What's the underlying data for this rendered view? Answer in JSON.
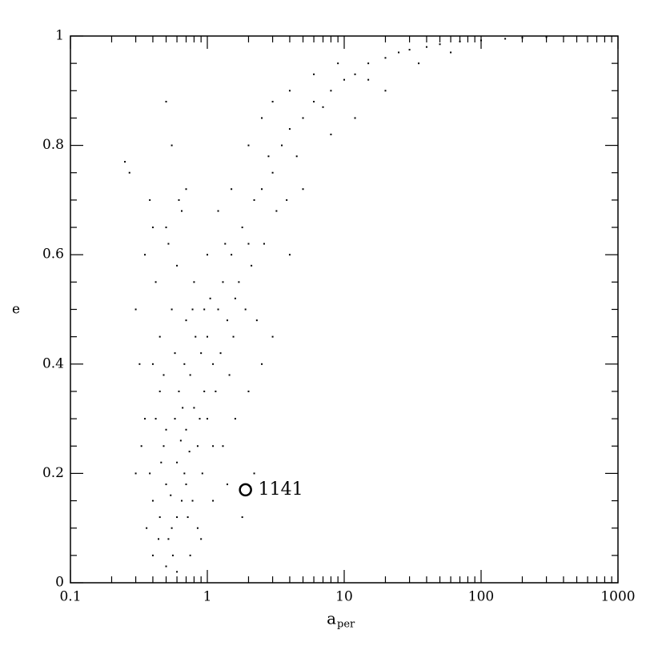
{
  "chart_data": {
    "type": "scatter",
    "x_label": "a",
    "x_label_sub": "per",
    "y_label": "e",
    "xlog": true,
    "color": "#000000",
    "xlim": [
      0.1,
      1000
    ],
    "xticks": [
      0.1,
      1,
      10,
      100,
      1000
    ],
    "xminorticks": [
      0.2,
      0.3,
      0.4,
      0.5,
      0.6,
      0.7,
      0.8,
      0.9,
      2,
      3,
      4,
      5,
      6,
      7,
      8,
      9,
      20,
      30,
      40,
      50,
      60,
      70,
      80,
      90,
      200,
      300,
      400,
      500,
      600,
      700,
      800,
      900
    ],
    "ylim": [
      0,
      1
    ],
    "yticks": [
      0,
      0.2,
      0.4,
      0.6,
      0.8,
      1
    ],
    "yminorticks": [
      0.05,
      0.1,
      0.15,
      0.25,
      0.3,
      0.35,
      0.45,
      0.5,
      0.55,
      0.65,
      0.7,
      0.75,
      0.85,
      0.9,
      0.95
    ],
    "x": [
      0.4,
      0.45,
      0.5,
      0.55,
      0.6,
      0.65,
      0.7,
      0.38,
      0.42,
      0.48,
      0.52,
      0.58,
      0.62,
      0.68,
      0.72,
      0.75,
      0.8,
      0.85,
      0.9,
      0.95,
      1.0,
      1.1,
      1.2,
      1.3,
      1.4,
      1.5,
      1.6,
      1.8,
      2.0,
      2.2,
      2.5,
      2.8,
      3.0,
      3.5,
      4,
      5,
      6,
      7,
      8,
      10,
      12,
      15,
      20,
      25,
      30,
      40,
      50,
      70,
      100,
      150,
      200,
      300,
      0.36,
      0.4,
      0.44,
      0.46,
      0.5,
      0.54,
      0.56,
      0.6,
      0.64,
      0.66,
      0.7,
      0.74,
      0.78,
      0.82,
      0.88,
      0.92,
      1.0,
      1.05,
      1.15,
      1.25,
      1.35,
      1.45,
      1.55,
      1.7,
      1.9,
      2.1,
      2.3,
      2.6,
      3.2,
      3.8,
      4.5,
      1.2,
      1.5,
      2.0,
      2.5,
      3.0,
      4,
      6,
      9,
      0.8,
      1.0,
      0.3,
      0.32,
      0.35,
      0.38,
      0.42,
      0.45,
      0.5,
      0.55,
      0.6,
      0.65,
      0.7,
      0.45,
      0.35,
      0.3,
      0.33,
      0.25,
      0.27,
      0.5,
      0.55,
      0.7,
      1.3,
      1.6,
      2.0,
      2.5,
      3.0,
      2.2,
      1.8,
      0.9,
      1.1,
      0.75,
      0.5,
      0.6,
      0.85,
      1.4,
      4,
      5,
      8,
      12,
      20,
      15,
      35,
      60,
      0.4,
      0.48,
      0.58,
      0.68,
      0.78,
      0.95,
      1.1,
      0.52,
      0.62,
      0.4
    ],
    "values": [
      0.05,
      0.12,
      0.18,
      0.1,
      0.22,
      0.15,
      0.28,
      0.2,
      0.3,
      0.25,
      0.08,
      0.3,
      0.35,
      0.2,
      0.12,
      0.38,
      0.32,
      0.25,
      0.42,
      0.35,
      0.45,
      0.4,
      0.5,
      0.55,
      0.48,
      0.6,
      0.52,
      0.65,
      0.62,
      0.7,
      0.72,
      0.78,
      0.75,
      0.8,
      0.83,
      0.85,
      0.88,
      0.87,
      0.9,
      0.92,
      0.93,
      0.95,
      0.96,
      0.97,
      0.975,
      0.98,
      0.985,
      0.99,
      0.992,
      0.995,
      0.997,
      0.998,
      0.1,
      0.15,
      0.08,
      0.22,
      0.28,
      0.16,
      0.05,
      0.12,
      0.26,
      0.32,
      0.18,
      0.24,
      0.15,
      0.45,
      0.3,
      0.2,
      0.3,
      0.52,
      0.35,
      0.42,
      0.62,
      0.38,
      0.45,
      0.55,
      0.5,
      0.58,
      0.48,
      0.62,
      0.68,
      0.7,
      0.78,
      0.68,
      0.72,
      0.8,
      0.85,
      0.88,
      0.9,
      0.93,
      0.95,
      0.55,
      0.6,
      0.5,
      0.4,
      0.6,
      0.7,
      0.55,
      0.45,
      0.65,
      0.5,
      0.58,
      0.68,
      0.48,
      0.35,
      0.3,
      0.2,
      0.25,
      0.77,
      0.75,
      0.88,
      0.8,
      0.72,
      0.25,
      0.3,
      0.35,
      0.4,
      0.45,
      0.2,
      0.12,
      0.08,
      0.15,
      0.05,
      0.03,
      0.02,
      0.1,
      0.18,
      0.6,
      0.72,
      0.82,
      0.85,
      0.9,
      0.92,
      0.95,
      0.97,
      0.4,
      0.38,
      0.42,
      0.4,
      0.5,
      0.5,
      0.25,
      0.62,
      0.7,
      0.65
    ],
    "annotations": [
      {
        "text": "1141",
        "x": 1.9,
        "y": 0.17
      }
    ]
  }
}
